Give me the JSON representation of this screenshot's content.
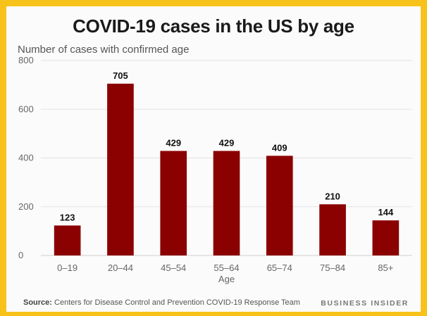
{
  "title": "COVID-19 cases in the US by age",
  "subtitle": "Number of cases with confirmed age",
  "source_label": "Source:",
  "source_text": "Centers for Disease Control and Prevention COVID-19 Response Team",
  "brand": "BUSINESS INSIDER",
  "colors": {
    "border": "#f7c31a",
    "bar": "#8b0000"
  },
  "chart_data": {
    "type": "bar",
    "categories": [
      "0–19",
      "20–44",
      "45–54",
      "55–64",
      "65–74",
      "75–84",
      "85+"
    ],
    "values": [
      123,
      705,
      429,
      429,
      409,
      210,
      144
    ],
    "title": "COVID-19 cases in the US by age",
    "xlabel": "Age",
    "ylabel": "Number of cases with confirmed age",
    "ylim": [
      0,
      800
    ],
    "yticks": [
      0,
      200,
      400,
      600,
      800
    ],
    "grid": true,
    "legend": "none"
  }
}
